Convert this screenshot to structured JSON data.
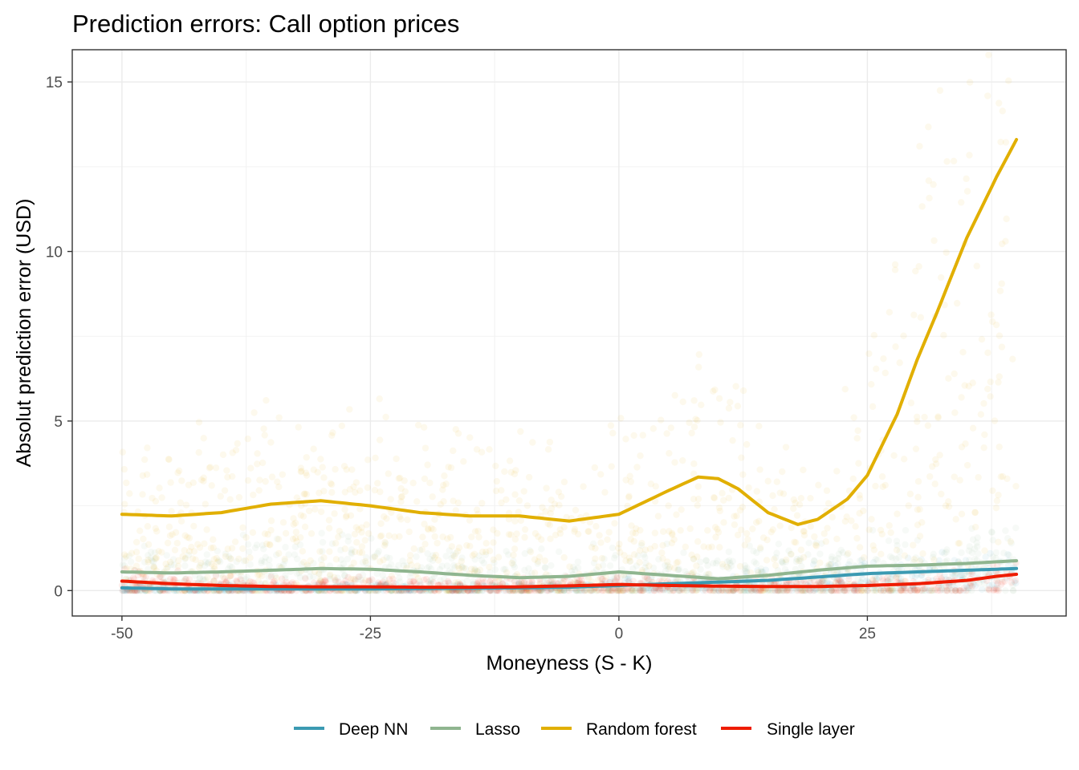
{
  "chart_data": {
    "type": "scatter",
    "title": "Prediction errors: Call option prices",
    "xlabel": "Moneyness (S - K)",
    "ylabel": "Absolut prediction error (USD)",
    "xlim": [
      -55,
      45
    ],
    "ylim": [
      -0.75,
      15.95
    ],
    "x_ticks": [
      -50,
      -25,
      0,
      25
    ],
    "x_tick_labels": [
      "-50",
      "-25",
      "0",
      "25"
    ],
    "y_ticks": [
      0,
      5,
      10,
      15
    ],
    "y_tick_labels": [
      "0",
      "5",
      "10",
      "15"
    ],
    "grid": true,
    "legend_position": "bottom",
    "series": [
      {
        "name": "Deep NN",
        "color": "#3B9AB2",
        "smooth_x": [
          -50,
          -45,
          -40,
          -35,
          -30,
          -25,
          -20,
          -15,
          -10,
          -5,
          0,
          5,
          10,
          15,
          20,
          25,
          30,
          35,
          40
        ],
        "smooth_y": [
          0.08,
          0.05,
          0.05,
          0.05,
          0.05,
          0.05,
          0.06,
          0.07,
          0.08,
          0.1,
          0.15,
          0.2,
          0.25,
          0.3,
          0.4,
          0.5,
          0.55,
          0.6,
          0.65
        ],
        "scatter_spread": 0.5
      },
      {
        "name": "Lasso",
        "color": "#8FB58F",
        "smooth_x": [
          -50,
          -45,
          -40,
          -35,
          -30,
          -25,
          -20,
          -15,
          -10,
          -5,
          0,
          5,
          10,
          15,
          20,
          25,
          30,
          35,
          40
        ],
        "smooth_y": [
          0.55,
          0.52,
          0.55,
          0.6,
          0.65,
          0.63,
          0.55,
          0.45,
          0.38,
          0.42,
          0.55,
          0.45,
          0.35,
          0.45,
          0.6,
          0.72,
          0.75,
          0.8,
          0.88
        ],
        "scatter_spread": 2.2
      },
      {
        "name": "Random forest",
        "color": "#E1AF00",
        "smooth_x": [
          -50,
          -45,
          -40,
          -35,
          -30,
          -25,
          -20,
          -15,
          -10,
          -5,
          0,
          5,
          8,
          10,
          12,
          15,
          18,
          20,
          23,
          25,
          28,
          30,
          32,
          35,
          38,
          40
        ],
        "smooth_y": [
          2.25,
          2.2,
          2.3,
          2.55,
          2.65,
          2.5,
          2.3,
          2.2,
          2.2,
          2.05,
          2.25,
          2.95,
          3.35,
          3.3,
          3.0,
          2.3,
          1.95,
          2.1,
          2.7,
          3.4,
          5.2,
          6.8,
          8.2,
          10.4,
          12.2,
          13.3
        ],
        "scatter_spread": 4.5
      },
      {
        "name": "Single layer",
        "color": "#EE1C00",
        "smooth_x": [
          -50,
          -45,
          -40,
          -35,
          -30,
          -25,
          -20,
          -15,
          -10,
          -5,
          0,
          5,
          10,
          15,
          20,
          25,
          30,
          35,
          38,
          40
        ],
        "smooth_y": [
          0.28,
          0.2,
          0.15,
          0.12,
          0.11,
          0.11,
          0.1,
          0.1,
          0.11,
          0.14,
          0.18,
          0.15,
          0.13,
          0.12,
          0.12,
          0.15,
          0.2,
          0.3,
          0.42,
          0.48
        ],
        "scatter_spread": 0.8
      }
    ]
  }
}
